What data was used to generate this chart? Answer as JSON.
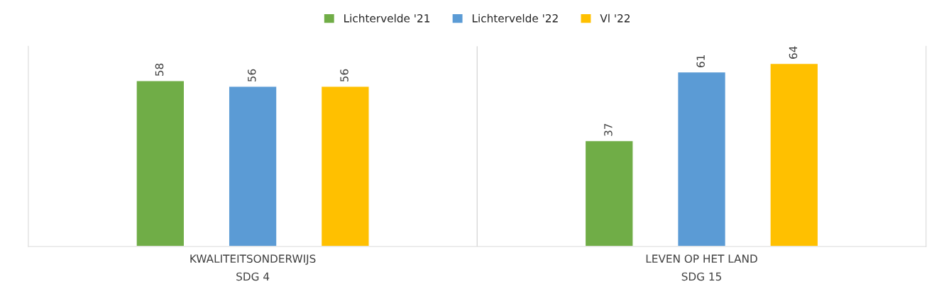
{
  "chart_data": {
    "type": "bar",
    "categories": [
      "KWALITEITSONDERWIJS\nSDG 4",
      "LEVEN OP HET LAND\nSDG 15"
    ],
    "series": [
      {
        "name": "Lichtervelde '21",
        "color": "#70ad47",
        "values": [
          58,
          37
        ]
      },
      {
        "name": "Lichtervelde '22",
        "color": "#5b9bd5",
        "values": [
          56,
          61
        ]
      },
      {
        "name": "Vl '22",
        "color": "#ffc000",
        "values": [
          56,
          64
        ]
      }
    ],
    "ylim": [
      0,
      70
    ],
    "tick_labels": "x",
    "data_labels": true,
    "legend": "top"
  }
}
